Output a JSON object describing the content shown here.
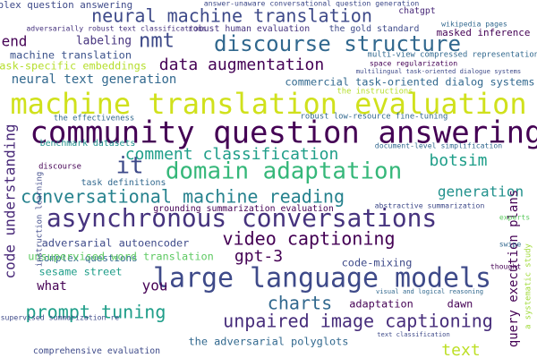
{
  "chart_data": {
    "type": "wordcloud",
    "background": "#ffffff",
    "words": [
      {
        "text": "machine translation evaluation",
        "weight": 94,
        "color": "#d0e11c"
      },
      {
        "text": "community question answering",
        "weight": 100,
        "color": "#440154"
      },
      {
        "text": "large language models",
        "weight": 88,
        "color": "#3e4a89"
      },
      {
        "text": "asynchronous conversations",
        "weight": 82,
        "color": "#46337e"
      },
      {
        "text": "domain adaptation",
        "weight": 76,
        "color": "#35b779"
      },
      {
        "text": "discourse structure",
        "weight": 71,
        "color": "#31688e"
      },
      {
        "text": "neural machine translation",
        "weight": 59,
        "color": "#3e4a89"
      },
      {
        "text": "conversational machine reading",
        "weight": 59,
        "color": "#26828e"
      },
      {
        "text": "unpaired image captioning",
        "weight": 59,
        "color": "#472d7b"
      },
      {
        "text": "prompt tuning",
        "weight": 59,
        "color": "#1f9e89"
      },
      {
        "text": "video captioning",
        "weight": 59,
        "color": "#440154"
      },
      {
        "text": "data augmentation",
        "weight": 53,
        "color": "#440154"
      },
      {
        "text": "comment classification",
        "weight": 53,
        "color": "#1f9e89"
      },
      {
        "text": "it",
        "weight": 76,
        "color": "#3e4a89"
      },
      {
        "text": "nmt",
        "weight": 65,
        "color": "#3e4a89"
      },
      {
        "text": "charts",
        "weight": 59,
        "color": "#31688e"
      },
      {
        "text": "botsim",
        "weight": 53,
        "color": "#1f9e89"
      },
      {
        "text": "generation",
        "weight": 47,
        "color": "#21918c"
      },
      {
        "text": "text",
        "weight": 53,
        "color": "#bddf26"
      },
      {
        "text": "neural text generation",
        "weight": 41,
        "color": "#31688e"
      },
      {
        "text": "end",
        "weight": 47,
        "color": "#440154"
      },
      {
        "text": "labeling",
        "weight": 38,
        "color": "#46337e"
      },
      {
        "text": "machine translation",
        "weight": 35,
        "color": "#3b528b"
      },
      {
        "text": "task-specific embeddings",
        "weight": 35,
        "color": "#b5de2b"
      },
      {
        "text": "complex question answering",
        "weight": 32,
        "color": "#3e4a89"
      },
      {
        "text": "commercial task-oriented dialog systems",
        "weight": 35,
        "color": "#31688e"
      },
      {
        "text": "masked inference",
        "weight": 32,
        "color": "#440154"
      },
      {
        "text": "robust human evaluation",
        "weight": 29,
        "color": "#46337e"
      },
      {
        "text": "the gold standard",
        "weight": 29,
        "color": "#3e4a89"
      },
      {
        "text": "chatgpt",
        "weight": 29,
        "color": "#482878"
      },
      {
        "text": "multi-view compressed representations",
        "weight": 26,
        "color": "#31688e"
      },
      {
        "text": "robust low-resource fine-tuning",
        "weight": 26,
        "color": "#31688e"
      },
      {
        "text": "the instructions",
        "weight": 26,
        "color": "#b5de2b"
      },
      {
        "text": "code understanding",
        "weight": 47,
        "color": "#482878"
      },
      {
        "text": "gpt-3",
        "weight": 53,
        "color": "#440154"
      },
      {
        "text": "code-mixing",
        "weight": 35,
        "color": "#3e4a89"
      },
      {
        "text": "adaptation",
        "weight": 35,
        "color": "#440154"
      },
      {
        "text": "dawn",
        "weight": 35,
        "color": "#440154"
      },
      {
        "text": "query execution plans",
        "weight": 41,
        "color": "#440154"
      },
      {
        "text": "sesame street",
        "weight": 35,
        "color": "#1f9e89"
      },
      {
        "text": "complex questions",
        "weight": 32,
        "color": "#31688e"
      },
      {
        "text": "what",
        "weight": 41,
        "color": "#440154"
      },
      {
        "text": "you",
        "weight": 47,
        "color": "#440154"
      },
      {
        "text": "adversarial autoencoder",
        "weight": 35,
        "color": "#3e4a89"
      },
      {
        "text": "unsupervised word translation",
        "weight": 35,
        "color": "#5ec962"
      },
      {
        "text": "the adversarial polyglots",
        "weight": 35,
        "color": "#31688e"
      },
      {
        "text": "comprehensive evaluation",
        "weight": 29,
        "color": "#3e4a89"
      },
      {
        "text": "task definitions",
        "weight": 29,
        "color": "#31688e"
      },
      {
        "text": "grounding summarization evaluation",
        "weight": 29,
        "color": "#440154"
      },
      {
        "text": "benchmark datasets",
        "weight": 29,
        "color": "#21918c"
      },
      {
        "text": "the effectiveness",
        "weight": 26,
        "color": "#31688e"
      },
      {
        "text": "discourse",
        "weight": 26,
        "color": "#440154"
      },
      {
        "text": "abstractive summarization",
        "weight": 24,
        "color": "#3e4a89"
      },
      {
        "text": "document-level simplification",
        "weight": 24,
        "color": "#31688e"
      },
      {
        "text": "a systematic study",
        "weight": 26,
        "color": "#a0da39"
      },
      {
        "text": "instruction learning",
        "weight": 26,
        "color": "#3e4a89"
      },
      {
        "text": "wikipedia pages",
        "weight": 24,
        "color": "#31688e"
      },
      {
        "text": "space regularization",
        "weight": 24,
        "color": "#440154"
      },
      {
        "text": "multilingual task-oriented dialogue systems",
        "weight": 21,
        "color": "#3e4a89"
      },
      {
        "text": "adversarially robust text classifications",
        "weight": 24,
        "color": "#46337e"
      },
      {
        "text": "answer-unaware conversational question generation",
        "weight": 24,
        "color": "#3e4a89"
      },
      {
        "text": "swipe",
        "weight": 24,
        "color": "#31688e"
      },
      {
        "text": "experts",
        "weight": 24,
        "color": "#5ec962"
      },
      {
        "text": "thought",
        "weight": 24,
        "color": "#440154"
      },
      {
        "text": "visual and logical reasoning",
        "weight": 21,
        "color": "#31688e"
      },
      {
        "text": "text classification",
        "weight": 21,
        "color": "#3e4a89"
      },
      {
        "text": "unsupervised summarization re",
        "weight": 24,
        "color": "#3e4a89"
      }
    ]
  }
}
